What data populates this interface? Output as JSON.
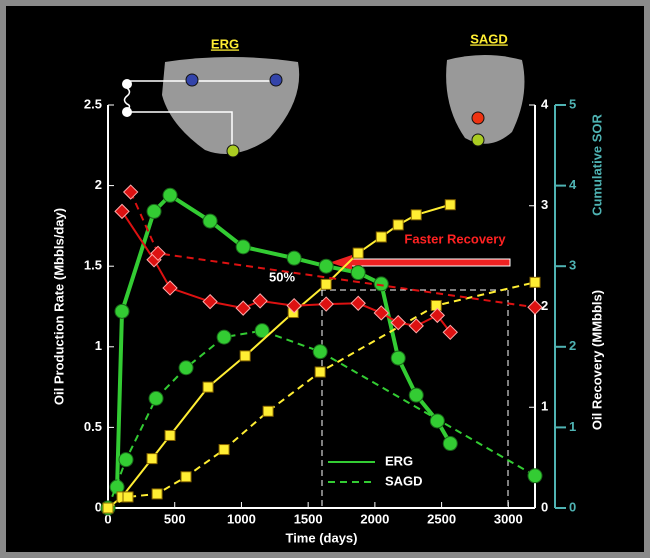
{
  "chart_data": {
    "type": "line",
    "xlabel": "Time (days)",
    "ylabel": "Oil Production Rate (Mbbls/day)",
    "y2label": "Oil Recovery (MMbbls)",
    "y3label": "Cumulative SOR",
    "xlim": [
      0,
      3200
    ],
    "xticks": [
      0,
      500,
      1000,
      1500,
      2000,
      2500,
      3000
    ],
    "ylim": [
      0,
      2.5
    ],
    "yticks": [
      0,
      0.5,
      1,
      1.5,
      2,
      2.5
    ],
    "y2lim": [
      0,
      4
    ],
    "y2ticks": [
      0,
      1,
      2,
      3,
      4
    ],
    "y3lim": [
      0,
      5
    ],
    "y3ticks": [
      0,
      1,
      2,
      3,
      4,
      5
    ],
    "y3color": "#4fb3b3",
    "series": [
      {
        "name": "ERG",
        "color": "#33cc33",
        "dash": false,
        "marker": "circle",
        "axis": "y",
        "width": 4,
        "x": [
          68,
          105,
          345,
          465,
          765,
          1013,
          1395,
          1635,
          1875,
          2048,
          2175,
          2310,
          2468,
          2565
        ],
        "values": [
          0.13,
          1.22,
          1.84,
          1.94,
          1.78,
          1.62,
          1.55,
          1.5,
          1.46,
          1.39,
          0.93,
          0.7,
          0.54,
          0.4
        ]
      },
      {
        "name": "SAGD",
        "color": "#33cc33",
        "dash": true,
        "marker": "circle",
        "axis": "y",
        "width": 2,
        "x": [
          0,
          135,
          360,
          585,
          870,
          1155,
          1590,
          3200
        ],
        "values": [
          0,
          0.3,
          0.68,
          0.87,
          1.06,
          1.1,
          0.97,
          0.2
        ]
      },
      {
        "name": "ERG",
        "color": "#ffee33",
        "dash": false,
        "marker": "square",
        "axis": "y2",
        "width": 2,
        "x": [
          0,
          105,
          330,
          465,
          750,
          1028,
          1388,
          1635,
          1875,
          2048,
          2175,
          2310,
          2565
        ],
        "values": [
          0,
          0.11,
          0.49,
          0.72,
          1.2,
          1.51,
          1.94,
          2.22,
          2.53,
          2.69,
          2.81,
          2.91,
          3.01
        ]
      },
      {
        "name": "SAGD",
        "color": "#ffee33",
        "dash": true,
        "marker": "square",
        "axis": "y2",
        "width": 2,
        "x": [
          0,
          150,
          368,
          585,
          870,
          1200,
          1590,
          2460,
          3200
        ],
        "values": [
          0,
          0.11,
          0.14,
          0.31,
          0.58,
          0.96,
          1.35,
          2.01,
          2.24
        ]
      },
      {
        "name": "ERG",
        "color": "#dd1111",
        "dash": false,
        "marker": "diamond",
        "axis": "y3",
        "width": 2,
        "x": [
          105,
          345,
          465,
          765,
          1013,
          1140,
          1395,
          1635,
          1875,
          2048,
          2175,
          2310,
          2468,
          2565
        ],
        "values": [
          3.68,
          3.08,
          2.73,
          2.56,
          2.48,
          2.57,
          2.51,
          2.53,
          2.54,
          2.42,
          2.3,
          2.26,
          2.39,
          2.18
        ]
      },
      {
        "name": "SAGD",
        "color": "#dd1111",
        "dash": true,
        "marker": "diamond",
        "axis": "y3",
        "width": 2,
        "x": [
          170,
          375,
          3200
        ],
        "values": [
          3.92,
          3.16,
          2.49
        ]
      }
    ],
    "legend": [
      0,
      1
    ],
    "annotations": [
      "Faster Recovery",
      "50%",
      "ERG",
      "SAGD"
    ]
  }
}
